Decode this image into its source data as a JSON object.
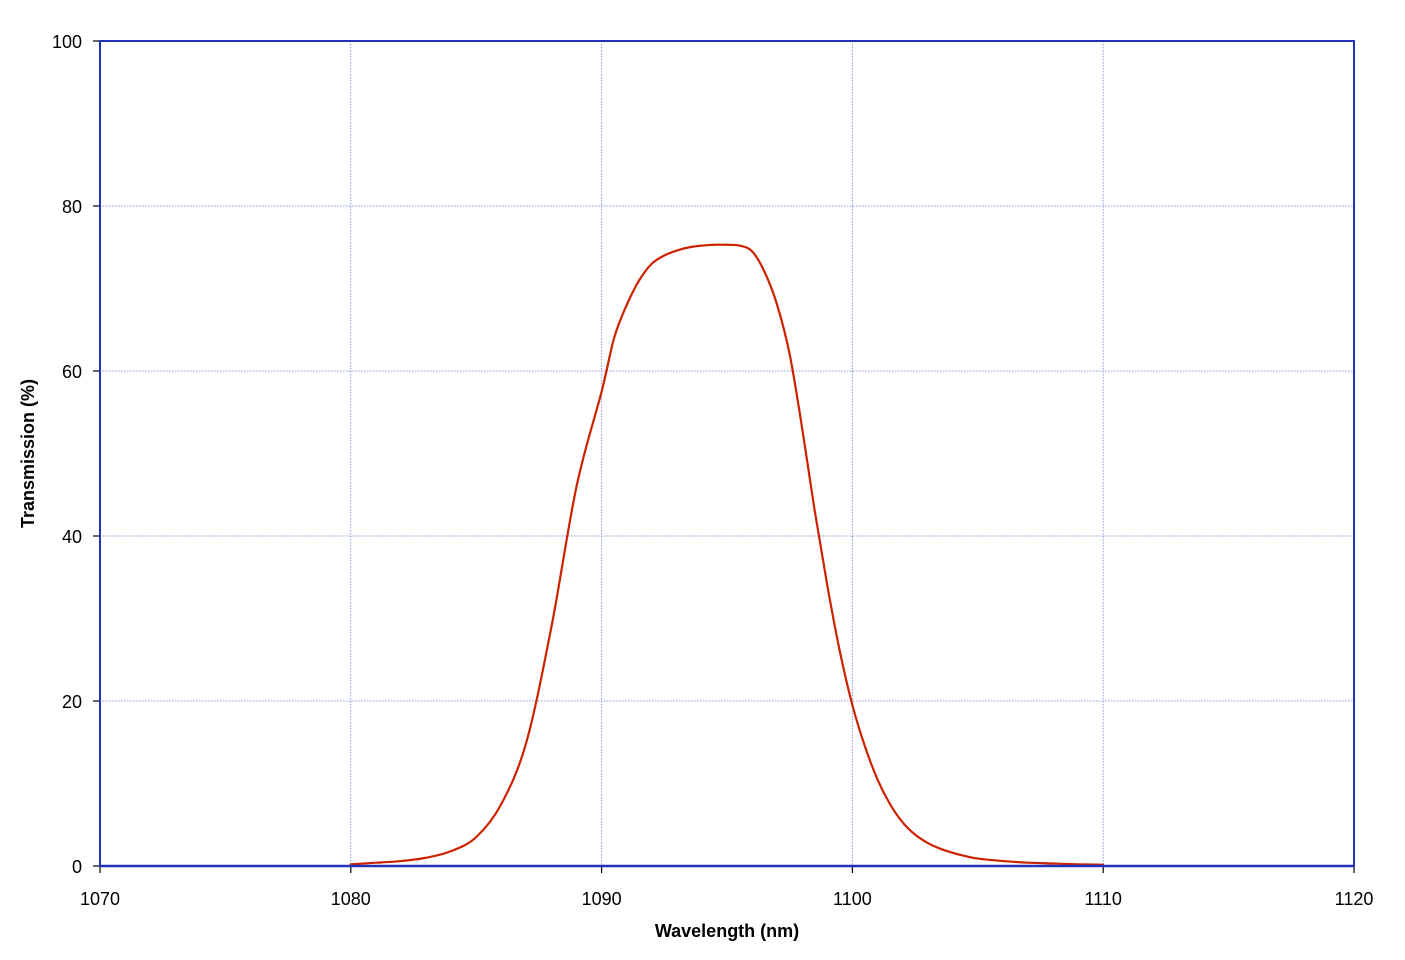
{
  "chart_data": {
    "type": "line",
    "title": "",
    "xlabel": "Wavelength (nm)",
    "ylabel": "Transmission (%)",
    "xlim": [
      1070,
      1120
    ],
    "ylim": [
      0,
      100
    ],
    "x_ticks": [
      1070,
      1080,
      1090,
      1100,
      1110,
      1120
    ],
    "y_ticks": [
      0,
      20,
      40,
      60,
      80,
      100
    ],
    "grid": true,
    "legend": "none",
    "colors": {
      "line": "#cc2200",
      "frame": "#2233bb",
      "grid": "#8899dd"
    },
    "series": [
      {
        "x": [
          1080,
          1081,
          1082,
          1083,
          1084,
          1085,
          1086,
          1087,
          1088,
          1089,
          1090,
          1090.5,
          1091,
          1091.5,
          1092,
          1092.5,
          1093,
          1093.5,
          1094,
          1094.5,
          1095,
          1095.5,
          1096,
          1096.5,
          1097,
          1097.5,
          1098,
          1098.5,
          1099,
          1099.5,
          1100,
          1100.5,
          1101,
          1101.5,
          1102,
          1102.5,
          1103,
          1103.5,
          1104,
          1104.5,
          1105,
          1106,
          1107,
          1108,
          1109,
          1110
        ],
        "y": [
          0.2,
          0.4,
          0.6,
          1.0,
          1.8,
          3.5,
          7.5,
          15,
          29,
          46,
          57.5,
          64,
          68,
          71,
          73,
          74,
          74.6,
          75,
          75.2,
          75.3,
          75.3,
          75.2,
          74.5,
          72,
          68,
          62,
          53,
          43,
          34,
          26,
          19.5,
          14.5,
          10.5,
          7.5,
          5.3,
          3.8,
          2.8,
          2.1,
          1.6,
          1.2,
          0.9,
          0.6,
          0.4,
          0.3,
          0.2,
          0.15
        ]
      }
    ]
  }
}
